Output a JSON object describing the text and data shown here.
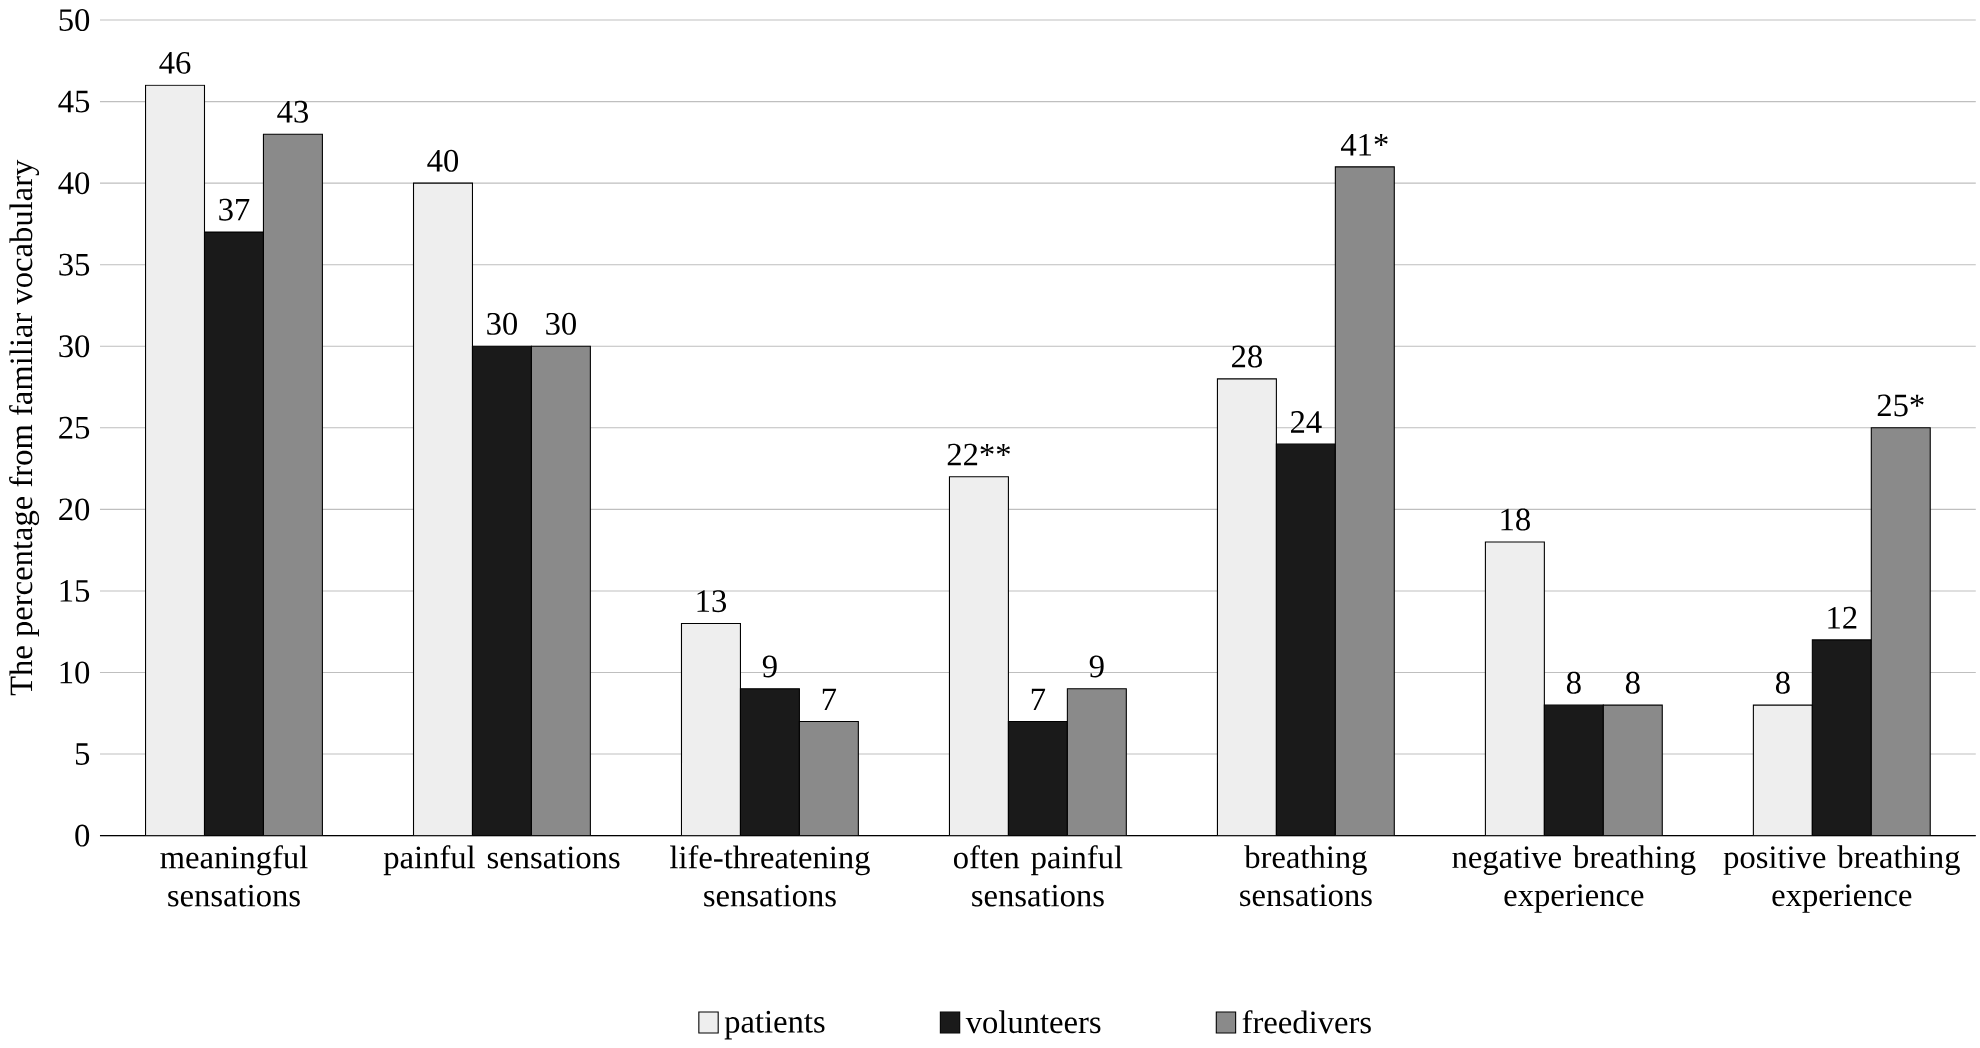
{
  "chart_data": {
    "type": "bar",
    "ylabel": "The percentage from familiar vocabulary",
    "categories": [
      "meaningful sensations",
      "painful sensations",
      "life-threatening sensations",
      "often painful sensations",
      "breathing sensations",
      "negative breathing experience",
      "positive breathing experience"
    ],
    "series": [
      {
        "name": "patients",
        "color": "#eeeeee",
        "values": [
          46,
          40,
          13,
          22,
          28,
          18,
          8
        ],
        "value_labels": [
          "46",
          "40",
          "13",
          "22**",
          "28",
          "18",
          "8"
        ]
      },
      {
        "name": "volunteers",
        "color": "#1a1a1a",
        "values": [
          37,
          30,
          9,
          7,
          24,
          8,
          12
        ],
        "value_labels": [
          "37",
          "30",
          "9",
          "7",
          "24",
          "8",
          "12"
        ]
      },
      {
        "name": "freedivers",
        "color": "#8a8a8a",
        "values": [
          43,
          30,
          7,
          9,
          41,
          8,
          25
        ],
        "value_labels": [
          "43",
          "30",
          "7",
          "9",
          "41*",
          "8",
          "25*"
        ]
      }
    ],
    "ylim": [
      0,
      50
    ],
    "yticks": [
      0,
      5,
      10,
      15,
      20,
      25,
      30,
      35,
      40,
      45,
      50
    ],
    "grid": "y",
    "legend": "bottom"
  }
}
